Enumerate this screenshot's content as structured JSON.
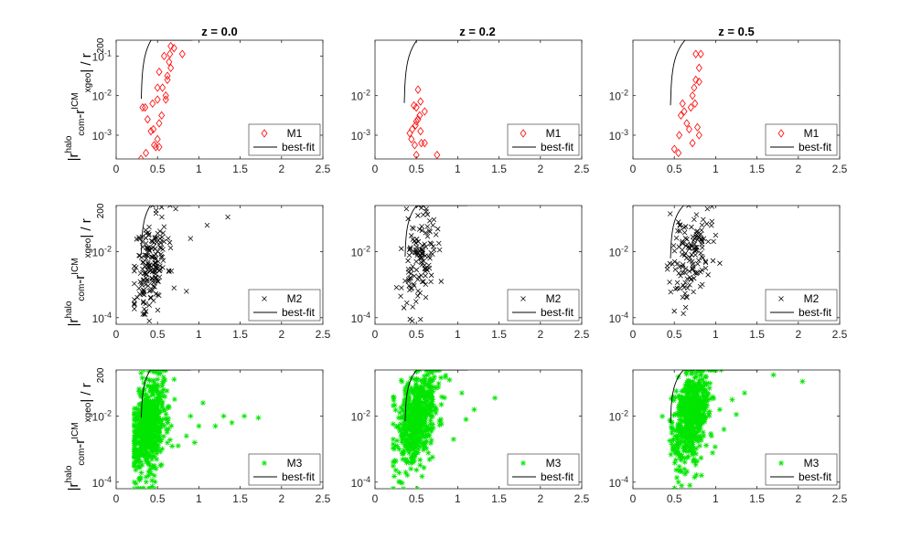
{
  "figure": {
    "column_titles": [
      "z = 0.0",
      "z = 0.2",
      "z = 0.5"
    ],
    "ylabel": {
      "parts": [
        {
          "t": "|r",
          "s": "n"
        },
        {
          "t": "halo",
          "s": "sup"
        },
        {
          "t": "com",
          "s": "sub"
        },
        {
          "t": "-r",
          "s": "n"
        },
        {
          "t": "ICM",
          "s": "sup"
        },
        {
          "t": "xgeo",
          "s": "sub"
        },
        {
          "t": "| / r",
          "s": "n"
        },
        {
          "t": "200",
          "s": "sub"
        }
      ]
    },
    "x_ticks": [
      "0",
      "0.5",
      "1",
      "1.5",
      "2",
      "2.5"
    ],
    "colors": {
      "M1": "#ff0000",
      "M2": "#000000",
      "M3": "#00e600",
      "fit": "#000000"
    }
  },
  "chart_data": [
    {
      "type": "scatter",
      "row": 0,
      "col": 0,
      "marker": "diamond",
      "xlim": [
        0,
        2.5
      ],
      "ylim_log10": [
        -3.6,
        -0.6
      ],
      "yticks": [
        "10^-3",
        "10^-2",
        "10^-1"
      ],
      "legend": [
        "M1",
        "best-fit"
      ],
      "series": [
        {
          "name": "M1",
          "points": [
            [
              0.3,
              -3.6
            ],
            [
              0.36,
              -3.45
            ],
            [
              0.32,
              -2.3
            ],
            [
              0.35,
              -2.3
            ],
            [
              0.38,
              -2.6
            ],
            [
              0.42,
              -2.9
            ],
            [
              0.45,
              -2.85
            ],
            [
              0.48,
              -3.3
            ],
            [
              0.5,
              -3.1
            ],
            [
              0.52,
              -2.7
            ],
            [
              0.52,
              -3.3
            ],
            [
              0.55,
              -2.5
            ],
            [
              0.46,
              -3.25
            ],
            [
              0.44,
              -2.2
            ],
            [
              0.5,
              -2.1
            ],
            [
              0.56,
              -1.8
            ],
            [
              0.6,
              -2.0
            ],
            [
              0.62,
              -1.5
            ],
            [
              0.64,
              -1.15
            ],
            [
              0.65,
              -0.95
            ],
            [
              0.7,
              -0.8
            ],
            [
              0.58,
              -1.0
            ],
            [
              0.52,
              -1.4
            ],
            [
              0.62,
              -1.6
            ],
            [
              0.6,
              -2.1
            ],
            [
              0.5,
              -1.8
            ],
            [
              0.66,
              -0.75
            ],
            [
              0.8,
              -0.95
            ],
            [
              0.66,
              -1.3
            ]
          ]
        },
        {
          "name": "best-fit",
          "fit": {
            "x0": 0.3,
            "k": 2.05,
            "xmax": 0.92
          }
        }
      ]
    },
    {
      "type": "scatter",
      "row": 0,
      "col": 1,
      "marker": "diamond",
      "xlim": [
        0,
        2.5
      ],
      "ylim_log10": [
        -3.6,
        -0.6
      ],
      "yticks": [
        "10^-3",
        "10^-2"
      ],
      "legend": [
        "M1",
        "best-fit"
      ],
      "series": [
        {
          "name": "M1",
          "points": [
            [
              0.42,
              -2.95
            ],
            [
              0.45,
              -2.85
            ],
            [
              0.47,
              -2.25
            ],
            [
              0.49,
              -2.75
            ],
            [
              0.5,
              -2.65
            ],
            [
              0.52,
              -2.6
            ],
            [
              0.54,
              -2.5
            ],
            [
              0.44,
              -3.1
            ],
            [
              0.48,
              -3.25
            ],
            [
              0.55,
              -2.9
            ],
            [
              0.5,
              -2.3
            ],
            [
              0.6,
              -3.2
            ],
            [
              0.56,
              -3.2
            ],
            [
              0.5,
              -3.5
            ],
            [
              0.75,
              -3.5
            ],
            [
              0.52,
              -1.85
            ],
            [
              0.55,
              -2.15
            ],
            [
              0.6,
              -2.4
            ]
          ]
        },
        {
          "name": "best-fit",
          "fit": {
            "x0": 0.35,
            "k": 1.6,
            "xmax": 1.15
          }
        }
      ]
    },
    {
      "type": "scatter",
      "row": 0,
      "col": 2,
      "marker": "diamond",
      "xlim": [
        0,
        2.5
      ],
      "ylim_log10": [
        -3.6,
        -0.6
      ],
      "yticks": [
        "10^-3",
        "10^-2"
      ],
      "legend": [
        "M1",
        "best-fit"
      ],
      "series": [
        {
          "name": "M1",
          "points": [
            [
              0.5,
              -3.35
            ],
            [
              0.55,
              -3.45
            ],
            [
              0.56,
              -3.0
            ],
            [
              0.58,
              -2.5
            ],
            [
              0.6,
              -2.2
            ],
            [
              0.62,
              -2.4
            ],
            [
              0.65,
              -2.7
            ],
            [
              0.68,
              -2.85
            ],
            [
              0.7,
              -2.3
            ],
            [
              0.72,
              -2.0
            ],
            [
              0.74,
              -1.8
            ],
            [
              0.76,
              -1.6
            ],
            [
              0.8,
              -1.3
            ],
            [
              0.8,
              -1.65
            ],
            [
              0.75,
              -2.2
            ],
            [
              0.78,
              -2.8
            ],
            [
              0.8,
              -3.0
            ],
            [
              0.72,
              -3.2
            ],
            [
              0.76,
              -0.95
            ],
            [
              0.82,
              -0.95
            ]
          ]
        },
        {
          "name": "best-fit",
          "fit": {
            "x0": 0.45,
            "k": 1.4,
            "xmax": 1.52
          }
        }
      ]
    },
    {
      "type": "scatter",
      "row": 1,
      "col": 0,
      "marker": "x",
      "xlim": [
        0,
        2.5
      ],
      "ylim_log10": [
        -4.2,
        -0.6
      ],
      "yticks": [
        "10^-4",
        "10^-2"
      ],
      "legend": [
        "M2",
        "best-fit"
      ],
      "series": [
        {
          "name": "M2",
          "generated": {
            "n": 170,
            "xmu": 0.42,
            "xsd": 0.1,
            "ymu": -2.4,
            "ysd": 0.75,
            "seed": 11
          },
          "extra": [
            [
              0.85,
              -3.2
            ],
            [
              0.7,
              -3.1
            ],
            [
              1.1,
              -1.2
            ],
            [
              1.35,
              -0.95
            ],
            [
              0.9,
              -1.6
            ],
            [
              0.72,
              -0.7
            ],
            [
              0.55,
              -0.65
            ],
            [
              0.4,
              -4.1
            ],
            [
              0.35,
              -3.9
            ]
          ]
        },
        {
          "name": "best-fit",
          "fit": {
            "x0": 0.3,
            "k": 2.2,
            "xmax": 0.9
          }
        }
      ]
    },
    {
      "type": "scatter",
      "row": 1,
      "col": 1,
      "marker": "x",
      "xlim": [
        0,
        2.5
      ],
      "ylim_log10": [
        -4.2,
        -0.6
      ],
      "yticks": [
        "10^-4",
        "10^-2"
      ],
      "legend": [
        "M2",
        "best-fit"
      ],
      "series": [
        {
          "name": "M2",
          "generated": {
            "n": 120,
            "xmu": 0.53,
            "xsd": 0.1,
            "ymu": -2.25,
            "ysd": 0.6,
            "seed": 23
          },
          "extra": [
            [
              0.38,
              -0.7
            ],
            [
              0.4,
              -1.0
            ],
            [
              0.8,
              -2.9
            ],
            [
              0.45,
              -4.1
            ],
            [
              0.55,
              -4.05
            ],
            [
              0.35,
              -3.7
            ],
            [
              0.7,
              -1.2
            ]
          ]
        },
        {
          "name": "best-fit",
          "fit": {
            "x0": 0.36,
            "k": 1.75,
            "xmax": 1.12
          }
        }
      ]
    },
    {
      "type": "scatter",
      "row": 1,
      "col": 2,
      "marker": "x",
      "xlim": [
        0,
        2.5
      ],
      "ylim_log10": [
        -4.2,
        -0.6
      ],
      "yticks": [
        "10^-4",
        "10^-2"
      ],
      "legend": [
        "M2",
        "best-fit"
      ],
      "series": [
        {
          "name": "M2",
          "generated": {
            "n": 130,
            "xmu": 0.7,
            "xsd": 0.12,
            "ymu": -2.1,
            "ysd": 0.65,
            "seed": 37
          },
          "extra": [
            [
              0.45,
              -0.85
            ],
            [
              0.9,
              -0.7
            ],
            [
              0.55,
              -1.1
            ],
            [
              1.05,
              -2.35
            ],
            [
              0.5,
              -3.8
            ],
            [
              1.0,
              -1.5
            ]
          ]
        },
        {
          "name": "best-fit",
          "fit": {
            "x0": 0.45,
            "k": 1.55,
            "xmax": 1.52
          }
        }
      ]
    },
    {
      "type": "scatter",
      "row": 2,
      "col": 0,
      "marker": "star",
      "xlim": [
        0,
        2.5
      ],
      "ylim_log10": [
        -4.2,
        -0.6
      ],
      "yticks": [
        "10^-4",
        "10^-2"
      ],
      "legend": [
        "M3",
        "best-fit"
      ],
      "series": [
        {
          "name": "M3",
          "generated": {
            "n": 650,
            "xmu": 0.4,
            "xsd": 0.11,
            "ymu": -2.3,
            "ysd": 0.75,
            "seed": 53
          },
          "extra": [
            [
              0.9,
              -2.0
            ],
            [
              1.05,
              -1.6
            ],
            [
              1.2,
              -2.3
            ],
            [
              1.3,
              -2.0
            ],
            [
              1.4,
              -2.2
            ],
            [
              1.55,
              -2.0
            ],
            [
              1.72,
              -2.05
            ],
            [
              0.85,
              -2.6
            ],
            [
              1.0,
              -2.3
            ],
            [
              0.75,
              -2.9
            ],
            [
              0.95,
              -2.8
            ]
          ]
        },
        {
          "name": "best-fit",
          "fit": {
            "x0": 0.3,
            "k": 2.2,
            "xmax": 0.9
          }
        }
      ]
    },
    {
      "type": "scatter",
      "row": 2,
      "col": 1,
      "marker": "star",
      "xlim": [
        0,
        2.5
      ],
      "ylim_log10": [
        -4.2,
        -0.6
      ],
      "yticks": [
        "10^-4",
        "10^-2"
      ],
      "legend": [
        "M3",
        "best-fit"
      ],
      "series": [
        {
          "name": "M3",
          "generated": {
            "n": 600,
            "xmu": 0.5,
            "xsd": 0.13,
            "ymu": -2.1,
            "ysd": 0.7,
            "seed": 71
          },
          "extra": [
            [
              1.45,
              -1.45
            ],
            [
              1.1,
              -2.1
            ],
            [
              0.95,
              -2.7
            ],
            [
              1.2,
              -1.8
            ],
            [
              1.05,
              -1.3
            ],
            [
              0.9,
              -0.9
            ]
          ]
        },
        {
          "name": "best-fit",
          "fit": {
            "x0": 0.36,
            "k": 1.75,
            "xmax": 1.12
          }
        }
      ]
    },
    {
      "type": "scatter",
      "row": 2,
      "col": 2,
      "marker": "star",
      "xlim": [
        0,
        2.5
      ],
      "ylim_log10": [
        -4.2,
        -0.6
      ],
      "yticks": [
        "10^-4",
        "10^-2"
      ],
      "legend": [
        "M3",
        "best-fit"
      ],
      "series": [
        {
          "name": "M3",
          "generated": {
            "n": 600,
            "xmu": 0.7,
            "xsd": 0.12,
            "ymu": -2.0,
            "ysd": 0.7,
            "seed": 97
          },
          "extra": [
            [
              1.2,
              -1.5
            ],
            [
              1.35,
              -1.3
            ],
            [
              1.7,
              -0.75
            ],
            [
              2.05,
              -0.95
            ],
            [
              1.05,
              -1.8
            ],
            [
              0.55,
              -4.0
            ],
            [
              1.1,
              -2.4
            ],
            [
              0.95,
              -2.6
            ],
            [
              1.25,
              -1.95
            ]
          ]
        },
        {
          "name": "best-fit",
          "fit": {
            "x0": 0.45,
            "k": 1.55,
            "xmax": 1.52
          }
        }
      ]
    }
  ]
}
